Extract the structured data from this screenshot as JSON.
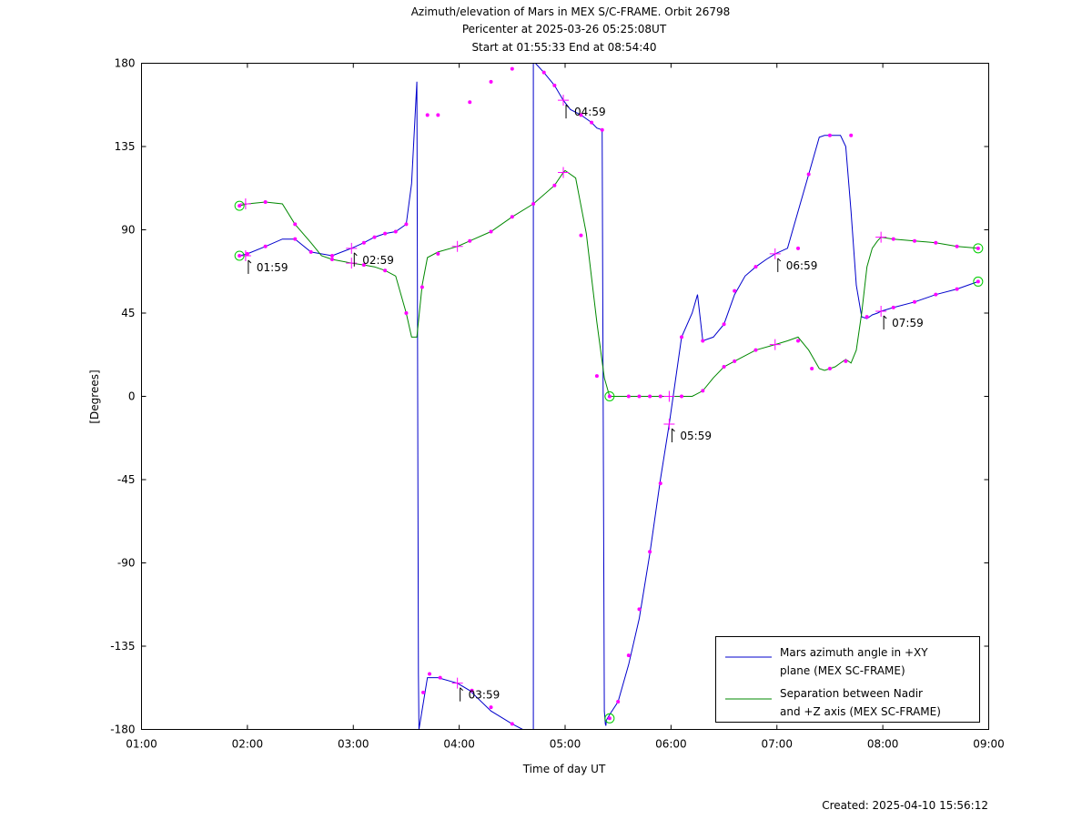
{
  "chart_data": {
    "type": "line",
    "title": [
      "Azimuth/elevation of Mars in MEX S/C-FRAME.  Orbit 26798",
      "Pericenter at 2025-03-26 05:25:08UT",
      "Start at 01:55:33 End at 08:54:40"
    ],
    "xlabel": "Time of day UT",
    "ylabel": "[Degrees]",
    "xlim": [
      1.0,
      9.0
    ],
    "ylim": [
      -180,
      180
    ],
    "x_ticks": [
      1,
      2,
      3,
      4,
      5,
      6,
      7,
      8,
      9
    ],
    "x_tick_labels": [
      "01:00",
      "02:00",
      "03:00",
      "04:00",
      "05:00",
      "06:00",
      "07:00",
      "08:00",
      "09:00"
    ],
    "y_ticks": [
      180,
      135,
      90,
      45,
      0,
      -45,
      -90,
      -135,
      -180
    ],
    "y_tick_labels": [
      "180",
      "135",
      "90",
      "45",
      "0",
      "-45",
      "-90",
      "-135",
      "-180"
    ],
    "legend_position": "bottom-right",
    "annotations": [
      {
        "text": "01:59",
        "x": 1.983,
        "y": 76
      },
      {
        "text": "02:59",
        "x": 2.983,
        "y": 80
      },
      {
        "text": "03:59",
        "x": 3.983,
        "y": -155
      },
      {
        "text": "04:59",
        "x": 4.983,
        "y": 160
      },
      {
        "text": "05:59",
        "x": 5.983,
        "y": -15
      },
      {
        "text": "06:59",
        "x": 6.983,
        "y": 77
      },
      {
        "text": "07:59",
        "x": 7.983,
        "y": 46
      }
    ],
    "series": [
      {
        "name": "Mars azimuth angle in +XY plane (MEX SC-FRAME)",
        "color": "#0000cc",
        "x": [
          1.925,
          2.0,
          2.17,
          2.33,
          2.45,
          2.6,
          2.8,
          2.983,
          3.1,
          3.2,
          3.3,
          3.4,
          3.5,
          3.55,
          3.6,
          3.605,
          3.61,
          3.615,
          3.62,
          3.7,
          3.8,
          3.983,
          4.1,
          4.3,
          4.5,
          4.6,
          4.7,
          4.7,
          4.72,
          4.8,
          4.9,
          4.983,
          5.05,
          5.15,
          5.2,
          5.25,
          5.3,
          5.35,
          5.37,
          5.38,
          5.385,
          5.39,
          5.42,
          5.5,
          5.6,
          5.7,
          5.8,
          5.9,
          5.983,
          6.1,
          6.2,
          6.25,
          6.3,
          6.4,
          6.5,
          6.6,
          6.7,
          6.8,
          6.9,
          6.983,
          7.1,
          7.2,
          7.3,
          7.4,
          7.45,
          7.5,
          7.55,
          7.6,
          7.65,
          7.7,
          7.75,
          7.8,
          7.85,
          7.9,
          7.95,
          7.983,
          8.1,
          8.3,
          8.5,
          8.7,
          8.9
        ],
        "y": [
          76,
          77,
          81,
          85,
          85,
          78,
          76,
          80,
          83,
          86,
          88,
          89,
          93,
          115,
          170,
          60,
          -40,
          -150,
          -180,
          -152,
          -152,
          -155,
          -159,
          -170,
          -177,
          -180,
          -180,
          180,
          180,
          175,
          168,
          160,
          155,
          152,
          150,
          148,
          145,
          144,
          -170,
          -177,
          -178,
          -175,
          -172,
          -165,
          -145,
          -120,
          -85,
          -45,
          -15,
          32,
          45,
          55,
          30,
          32,
          39,
          55,
          65,
          70,
          74,
          77,
          80,
          100,
          120,
          140,
          141,
          141,
          141,
          141,
          135,
          100,
          60,
          43,
          42,
          44,
          45,
          46,
          48,
          51,
          55,
          58,
          62
        ]
      },
      {
        "name": "Separation between Nadir and +Z axis (MEX SC-FRAME)",
        "color": "#008800",
        "x": [
          1.925,
          2.0,
          2.17,
          2.33,
          2.45,
          2.6,
          2.7,
          2.8,
          2.983,
          3.1,
          3.2,
          3.3,
          3.4,
          3.5,
          3.55,
          3.6,
          3.65,
          3.7,
          3.8,
          3.983,
          4.1,
          4.3,
          4.5,
          4.7,
          4.9,
          4.983,
          5.0,
          5.1,
          5.2,
          5.3,
          5.37,
          5.42,
          5.5,
          5.6,
          5.7,
          5.8,
          5.9,
          5.983,
          6.1,
          6.2,
          6.3,
          6.4,
          6.5,
          6.6,
          6.7,
          6.8,
          6.983,
          7.1,
          7.2,
          7.3,
          7.4,
          7.45,
          7.5,
          7.55,
          7.6,
          7.65,
          7.7,
          7.75,
          7.8,
          7.85,
          7.9,
          7.95,
          7.983,
          8.1,
          8.3,
          8.5,
          8.7,
          8.9
        ],
        "y": [
          103,
          104,
          105,
          104,
          93,
          83,
          76,
          74,
          72,
          71,
          70,
          68,
          65,
          45,
          32,
          32,
          60,
          75,
          78,
          81,
          84,
          89,
          97,
          104,
          114,
          121,
          122,
          118,
          88,
          40,
          10,
          0,
          0,
          0,
          0,
          0,
          0,
          0,
          0,
          0,
          3,
          10,
          16,
          19,
          22,
          25,
          28,
          30,
          32,
          25,
          15,
          14,
          15,
          16,
          18,
          20,
          18,
          25,
          45,
          70,
          80,
          84,
          86,
          85,
          84,
          83,
          81,
          80
        ]
      }
    ],
    "markers": {
      "dot_color": "#ff00ff",
      "circle_color": "#00cc00",
      "dots_blue": [
        [
          2.0,
          77
        ],
        [
          2.17,
          81
        ],
        [
          2.45,
          85
        ],
        [
          2.8,
          76
        ],
        [
          3.1,
          83
        ],
        [
          3.2,
          86
        ],
        [
          3.3,
          88
        ],
        [
          3.4,
          89
        ],
        [
          3.5,
          93
        ],
        [
          3.7,
          152
        ],
        [
          3.8,
          152
        ],
        [
          4.1,
          159
        ],
        [
          4.3,
          170
        ],
        [
          4.5,
          177
        ],
        [
          3.66,
          -160
        ],
        [
          3.72,
          -150
        ],
        [
          3.82,
          -152
        ],
        [
          4.12,
          -159
        ],
        [
          4.3,
          -168
        ],
        [
          4.5,
          -177
        ],
        [
          4.8,
          175
        ],
        [
          4.9,
          168
        ],
        [
          5.15,
          152
        ],
        [
          5.25,
          148
        ],
        [
          5.35,
          144
        ],
        [
          5.5,
          -165
        ],
        [
          5.6,
          -140
        ],
        [
          5.7,
          -115
        ],
        [
          5.8,
          -84
        ],
        [
          5.9,
          -47
        ],
        [
          6.1,
          32
        ],
        [
          6.3,
          30
        ],
        [
          6.5,
          39
        ],
        [
          6.6,
          57
        ],
        [
          6.8,
          70
        ],
        [
          7.2,
          80
        ],
        [
          7.3,
          120
        ],
        [
          7.5,
          141
        ],
        [
          7.7,
          141
        ],
        [
          7.85,
          43
        ],
        [
          8.1,
          48
        ],
        [
          8.3,
          51
        ],
        [
          8.5,
          55
        ],
        [
          8.7,
          58
        ]
      ],
      "dots_green": [
        [
          2.17,
          105
        ],
        [
          2.45,
          93
        ],
        [
          2.6,
          78
        ],
        [
          2.8,
          74
        ],
        [
          3.1,
          71
        ],
        [
          3.3,
          68
        ],
        [
          3.5,
          45
        ],
        [
          3.65,
          59
        ],
        [
          3.8,
          77
        ],
        [
          4.1,
          84
        ],
        [
          4.3,
          89
        ],
        [
          4.5,
          97
        ],
        [
          4.7,
          104
        ],
        [
          4.9,
          114
        ],
        [
          5.15,
          87
        ],
        [
          5.3,
          11
        ],
        [
          5.6,
          0
        ],
        [
          5.7,
          0
        ],
        [
          5.8,
          0
        ],
        [
          5.9,
          0
        ],
        [
          6.1,
          0
        ],
        [
          6.3,
          3
        ],
        [
          6.5,
          16
        ],
        [
          6.6,
          19
        ],
        [
          6.8,
          25
        ],
        [
          7.2,
          30
        ],
        [
          7.33,
          15
        ],
        [
          7.5,
          15
        ],
        [
          7.65,
          19
        ],
        [
          8.1,
          85
        ],
        [
          8.3,
          84
        ],
        [
          8.5,
          83
        ],
        [
          8.7,
          81
        ]
      ],
      "crosses": [
        [
          1.983,
          76
        ],
        [
          1.983,
          104
        ],
        [
          2.983,
          80
        ],
        [
          2.983,
          72
        ],
        [
          3.983,
          -155
        ],
        [
          3.983,
          81
        ],
        [
          4.983,
          160
        ],
        [
          4.983,
          121
        ],
        [
          5.983,
          -15
        ],
        [
          5.983,
          0
        ],
        [
          6.983,
          77
        ],
        [
          6.983,
          28
        ],
        [
          7.983,
          46
        ],
        [
          7.983,
          86
        ]
      ],
      "circles": [
        [
          1.925,
          76
        ],
        [
          1.925,
          103
        ],
        [
          5.42,
          -174
        ],
        [
          5.42,
          0
        ],
        [
          8.9,
          62
        ],
        [
          8.9,
          80
        ]
      ]
    },
    "created": "Created: 2025-04-10 15:56:12"
  }
}
